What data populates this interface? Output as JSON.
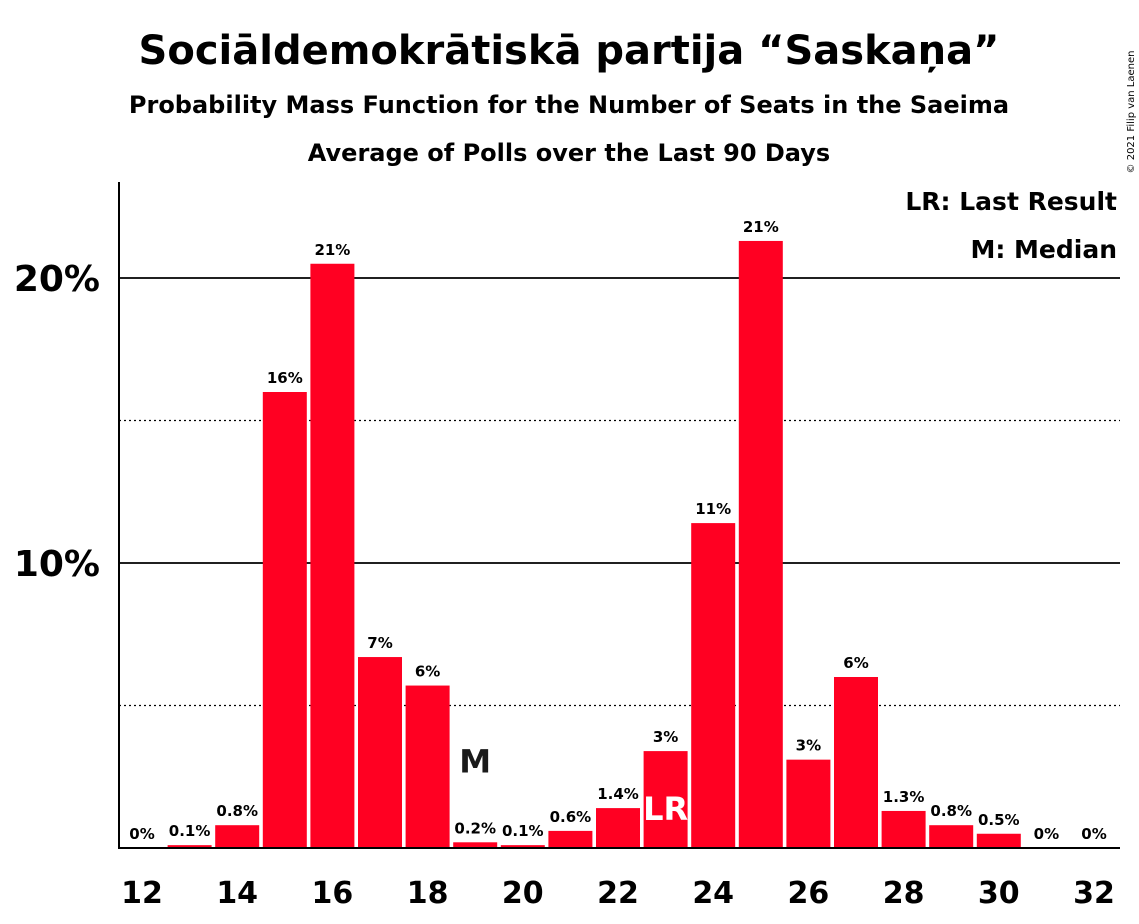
{
  "chart_data": {
    "type": "bar",
    "title": "Sociāldemokrātiskā partija “Saskaņa”",
    "subtitle_lines": [
      "Probability Mass Function for the Number of Seats in the Saeima",
      "Average of Polls over the Last 90 Days"
    ],
    "legend": [
      "LR: Last Result",
      "M: Median"
    ],
    "legend_position": "top-right",
    "copyright": "© 2021 Filip van Laenen",
    "bar_color": "#ff0022",
    "ylim": [
      0,
      23.4
    ],
    "y_major_ticks": [
      10,
      20
    ],
    "y_major_labels": [
      "10%",
      "20%"
    ],
    "y_minor_ticks": [
      5,
      15
    ],
    "x_tick_labels": [
      "12",
      "14",
      "16",
      "18",
      "20",
      "22",
      "24",
      "26",
      "28",
      "30",
      "32"
    ],
    "x": [
      12,
      13,
      14,
      15,
      16,
      17,
      18,
      19,
      20,
      21,
      22,
      23,
      24,
      25,
      26,
      27,
      28,
      29,
      30,
      31,
      32
    ],
    "values": [
      0,
      0.1,
      0.8,
      16.0,
      20.5,
      6.7,
      5.7,
      0.2,
      0.1,
      0.6,
      1.4,
      3.4,
      11.4,
      21.3,
      3.1,
      6.0,
      1.3,
      0.8,
      0.5,
      0,
      0
    ],
    "labels": [
      "0%",
      "0.1%",
      "0.8%",
      "16%",
      "21%",
      "7%",
      "6%",
      "0.2%",
      "0.1%",
      "0.6%",
      "1.4%",
      "3%",
      "11%",
      "21%",
      "3%",
      "6%",
      "1.3%",
      "0.8%",
      "0.5%",
      "0%",
      "0%"
    ],
    "median_seat": 19,
    "median_marker": "M",
    "last_result_seat": 23,
    "last_result_marker": "LR"
  }
}
